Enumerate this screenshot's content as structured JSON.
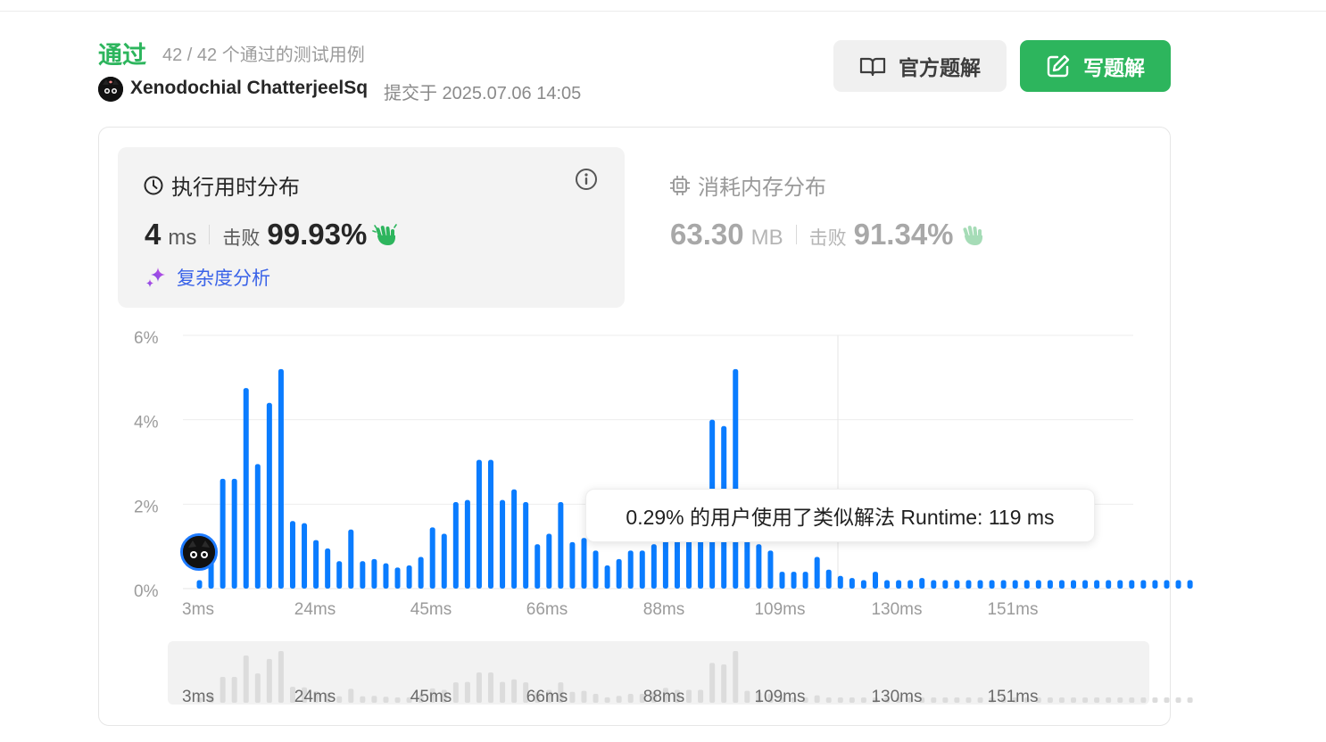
{
  "header": {
    "status": "通过",
    "cases": "42 / 42 个通过的测试用例",
    "username": "Xenodochial ChatterjeelSq",
    "submitted": "提交于 2025.07.06 14:05",
    "official_solution": "官方题解",
    "write_solution": "写题解"
  },
  "runtime": {
    "title": "执行用时分布",
    "value": "4",
    "unit": "ms",
    "beats_label": "击败",
    "beats": "99.93%",
    "analysis": "复杂度分析"
  },
  "memory": {
    "title": "消耗内存分布",
    "value": "63.30",
    "unit": "MB",
    "beats_label": "击败",
    "beats": "91.34%"
  },
  "tooltip": "0.29% 的用户使用了类似解法 Runtime: 119 ms",
  "colors": {
    "accent_green": "#2db55d",
    "bar_blue": "#0a7cff",
    "link_blue": "#3a63e8"
  },
  "chart_data": {
    "type": "bar",
    "ylim": [
      0,
      6
    ],
    "y_ticks": [
      "6%",
      "4%",
      "2%",
      "0%"
    ],
    "x_ticks": [
      "3ms",
      "24ms",
      "45ms",
      "66ms",
      "88ms",
      "109ms",
      "130ms",
      "151ms"
    ],
    "values": [
      0.2,
      0.9,
      2.6,
      2.6,
      4.75,
      2.95,
      4.4,
      5.2,
      1.6,
      1.55,
      1.15,
      0.95,
      0.65,
      1.4,
      0.65,
      0.7,
      0.6,
      0.5,
      0.55,
      0.75,
      1.45,
      1.3,
      2.05,
      2.1,
      3.05,
      3.05,
      2.1,
      2.35,
      2.05,
      1.05,
      1.3,
      2.05,
      1.1,
      1.2,
      0.9,
      0.55,
      0.7,
      0.9,
      0.9,
      1.05,
      1.5,
      1.3,
      1.3,
      1.3,
      4.0,
      3.85,
      5.2,
      1.2,
      1.05,
      0.9,
      0.4,
      0.4,
      0.4,
      0.75,
      0.45,
      0.3,
      0.25,
      0.2,
      0.4,
      0.2,
      0.2,
      0.2,
      0.25,
      0.2,
      0.2,
      0.2,
      0.2,
      0.2,
      0.2,
      0.2,
      0.2,
      0.2,
      0.2,
      0.2,
      0.2,
      0.2,
      0.2,
      0.2,
      0.2,
      0.2,
      0.2,
      0.2,
      0.2,
      0.2,
      0.2,
      0.2
    ],
    "highlight_x": "119ms",
    "grid": true
  }
}
